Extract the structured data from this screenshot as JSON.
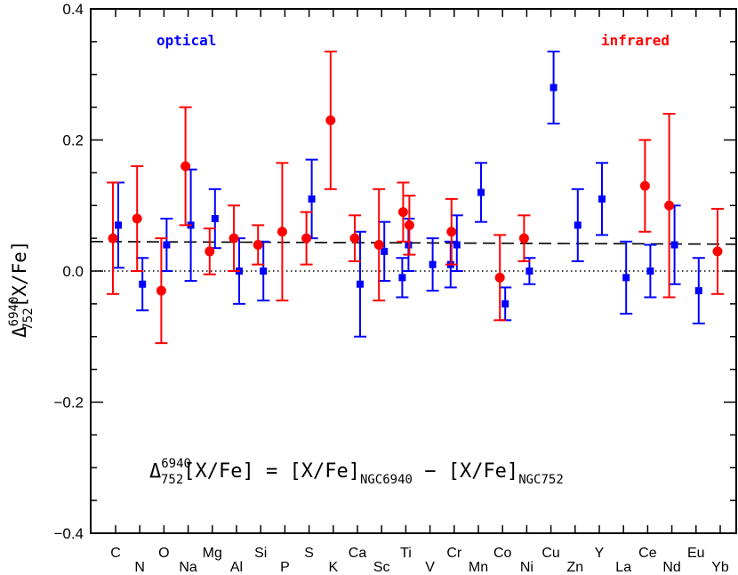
{
  "chart_data": {
    "type": "scatter",
    "ylim": [
      -0.4,
      0.4
    ],
    "yticks": [
      "0.4",
      "0.2",
      "0.0",
      "−0.2",
      "−0.4"
    ],
    "ytick_values": [
      0.4,
      0.2,
      0.0,
      -0.2,
      -0.4
    ],
    "ylabel": {
      "delta": "Δ",
      "sup": "6940",
      "sub": "752",
      "rest": "[X/Fe]"
    },
    "equation": {
      "delta": "Δ",
      "sup": "6940",
      "sub": "752",
      "lhs": "[X/Fe] = [X/Fe]",
      "sub1": "NGC6940",
      "mid": " − [X/Fe]",
      "sub2": "NGC752"
    },
    "elements": [
      "C",
      "N",
      "O",
      "Na",
      "Mg",
      "Al",
      "Si",
      "P",
      "S",
      "K",
      "Ca",
      "Sc",
      "Ti",
      "V",
      "Cr",
      "Mn",
      "Co",
      "Ni",
      "Cu",
      "Zn",
      "Y",
      "La",
      "Ce",
      "Nd",
      "Eu",
      "Yb"
    ],
    "reference_lines": [
      {
        "name": "zero",
        "y": 0.0,
        "style": "dotted"
      },
      {
        "name": "mean",
        "y_start": 0.045,
        "y_end": 0.041,
        "style": "dashed"
      }
    ],
    "series": [
      {
        "name": "optical",
        "color": "#0000ff",
        "marker": "square",
        "points": [
          {
            "x": "C",
            "y": 0.07,
            "lo": 0.005,
            "hi": 0.135
          },
          {
            "x": "N",
            "y": -0.02,
            "lo": -0.06,
            "hi": 0.02
          },
          {
            "x": "O",
            "y": 0.04,
            "lo": 0.0,
            "hi": 0.08
          },
          {
            "x": "Na",
            "y": 0.07,
            "lo": -0.015,
            "hi": 0.155
          },
          {
            "x": "Mg",
            "y": 0.08,
            "lo": 0.035,
            "hi": 0.125
          },
          {
            "x": "Al",
            "y": 0.0,
            "lo": -0.05,
            "hi": 0.05
          },
          {
            "x": "Si",
            "y": 0.0,
            "lo": -0.045,
            "hi": 0.045
          },
          {
            "x": "S",
            "y": 0.11,
            "lo": 0.05,
            "hi": 0.17
          },
          {
            "x": "Ca",
            "y": -0.02,
            "lo": -0.1,
            "hi": 0.06
          },
          {
            "x": "Sc",
            "y": 0.03,
            "lo": -0.015,
            "hi": 0.075
          },
          {
            "x": "Ti",
            "y": 0.04,
            "lo": 0.0,
            "hi": 0.08
          },
          {
            "x": "Ti",
            "y": -0.01,
            "lo": -0.04,
            "hi": 0.02
          },
          {
            "x": "V",
            "y": 0.01,
            "lo": -0.03,
            "hi": 0.05
          },
          {
            "x": "Cr",
            "y": 0.04,
            "lo": 0.0,
            "hi": 0.085
          },
          {
            "x": "Cr",
            "y": 0.01,
            "lo": -0.025,
            "hi": 0.045
          },
          {
            "x": "Mn",
            "y": 0.12,
            "lo": 0.075,
            "hi": 0.165
          },
          {
            "x": "Co",
            "y": -0.05,
            "lo": -0.075,
            "hi": -0.025
          },
          {
            "x": "Ni",
            "y": 0.0,
            "lo": -0.02,
            "hi": 0.02
          },
          {
            "x": "Cu",
            "y": 0.28,
            "lo": 0.225,
            "hi": 0.335
          },
          {
            "x": "Zn",
            "y": 0.07,
            "lo": 0.015,
            "hi": 0.125
          },
          {
            "x": "Y",
            "y": 0.11,
            "lo": 0.055,
            "hi": 0.165
          },
          {
            "x": "La",
            "y": -0.01,
            "lo": -0.065,
            "hi": 0.045
          },
          {
            "x": "Ce",
            "y": 0.0,
            "lo": -0.04,
            "hi": 0.04
          },
          {
            "x": "Nd",
            "y": 0.04,
            "lo": -0.02,
            "hi": 0.1
          },
          {
            "x": "Eu",
            "y": -0.03,
            "lo": -0.08,
            "hi": 0.02
          }
        ]
      },
      {
        "name": "infrared",
        "color": "#ff0000",
        "marker": "circle",
        "points": [
          {
            "x": "C",
            "y": 0.05,
            "lo": -0.035,
            "hi": 0.135
          },
          {
            "x": "N",
            "y": 0.08,
            "lo": 0.0,
            "hi": 0.16
          },
          {
            "x": "O",
            "y": -0.03,
            "lo": -0.11,
            "hi": 0.05
          },
          {
            "x": "Na",
            "y": 0.16,
            "lo": 0.07,
            "hi": 0.25
          },
          {
            "x": "Mg",
            "y": 0.03,
            "lo": -0.005,
            "hi": 0.065
          },
          {
            "x": "Al",
            "y": 0.05,
            "lo": 0.0,
            "hi": 0.1
          },
          {
            "x": "Si",
            "y": 0.04,
            "lo": 0.01,
            "hi": 0.07
          },
          {
            "x": "P",
            "y": 0.06,
            "lo": -0.045,
            "hi": 0.165
          },
          {
            "x": "S",
            "y": 0.05,
            "lo": 0.01,
            "hi": 0.09
          },
          {
            "x": "K",
            "y": 0.23,
            "lo": 0.125,
            "hi": 0.335
          },
          {
            "x": "Ca",
            "y": 0.05,
            "lo": 0.015,
            "hi": 0.085
          },
          {
            "x": "Sc",
            "y": 0.04,
            "lo": -0.045,
            "hi": 0.125
          },
          {
            "x": "Ti",
            "y": 0.09,
            "lo": 0.045,
            "hi": 0.135
          },
          {
            "x": "Ti",
            "y": 0.07,
            "lo": 0.025,
            "hi": 0.115
          },
          {
            "x": "Cr",
            "y": 0.06,
            "lo": 0.01,
            "hi": 0.11
          },
          {
            "x": "Co",
            "y": -0.01,
            "lo": -0.075,
            "hi": 0.055
          },
          {
            "x": "Ni",
            "y": 0.05,
            "lo": 0.015,
            "hi": 0.085
          },
          {
            "x": "Ce",
            "y": 0.13,
            "lo": 0.06,
            "hi": 0.2
          },
          {
            "x": "Nd",
            "y": 0.1,
            "lo": -0.04,
            "hi": 0.24
          },
          {
            "x": "Yb",
            "y": 0.03,
            "lo": -0.035,
            "hi": 0.095
          }
        ]
      }
    ],
    "legend": {
      "optical": "optical",
      "infrared": "infrared"
    }
  }
}
